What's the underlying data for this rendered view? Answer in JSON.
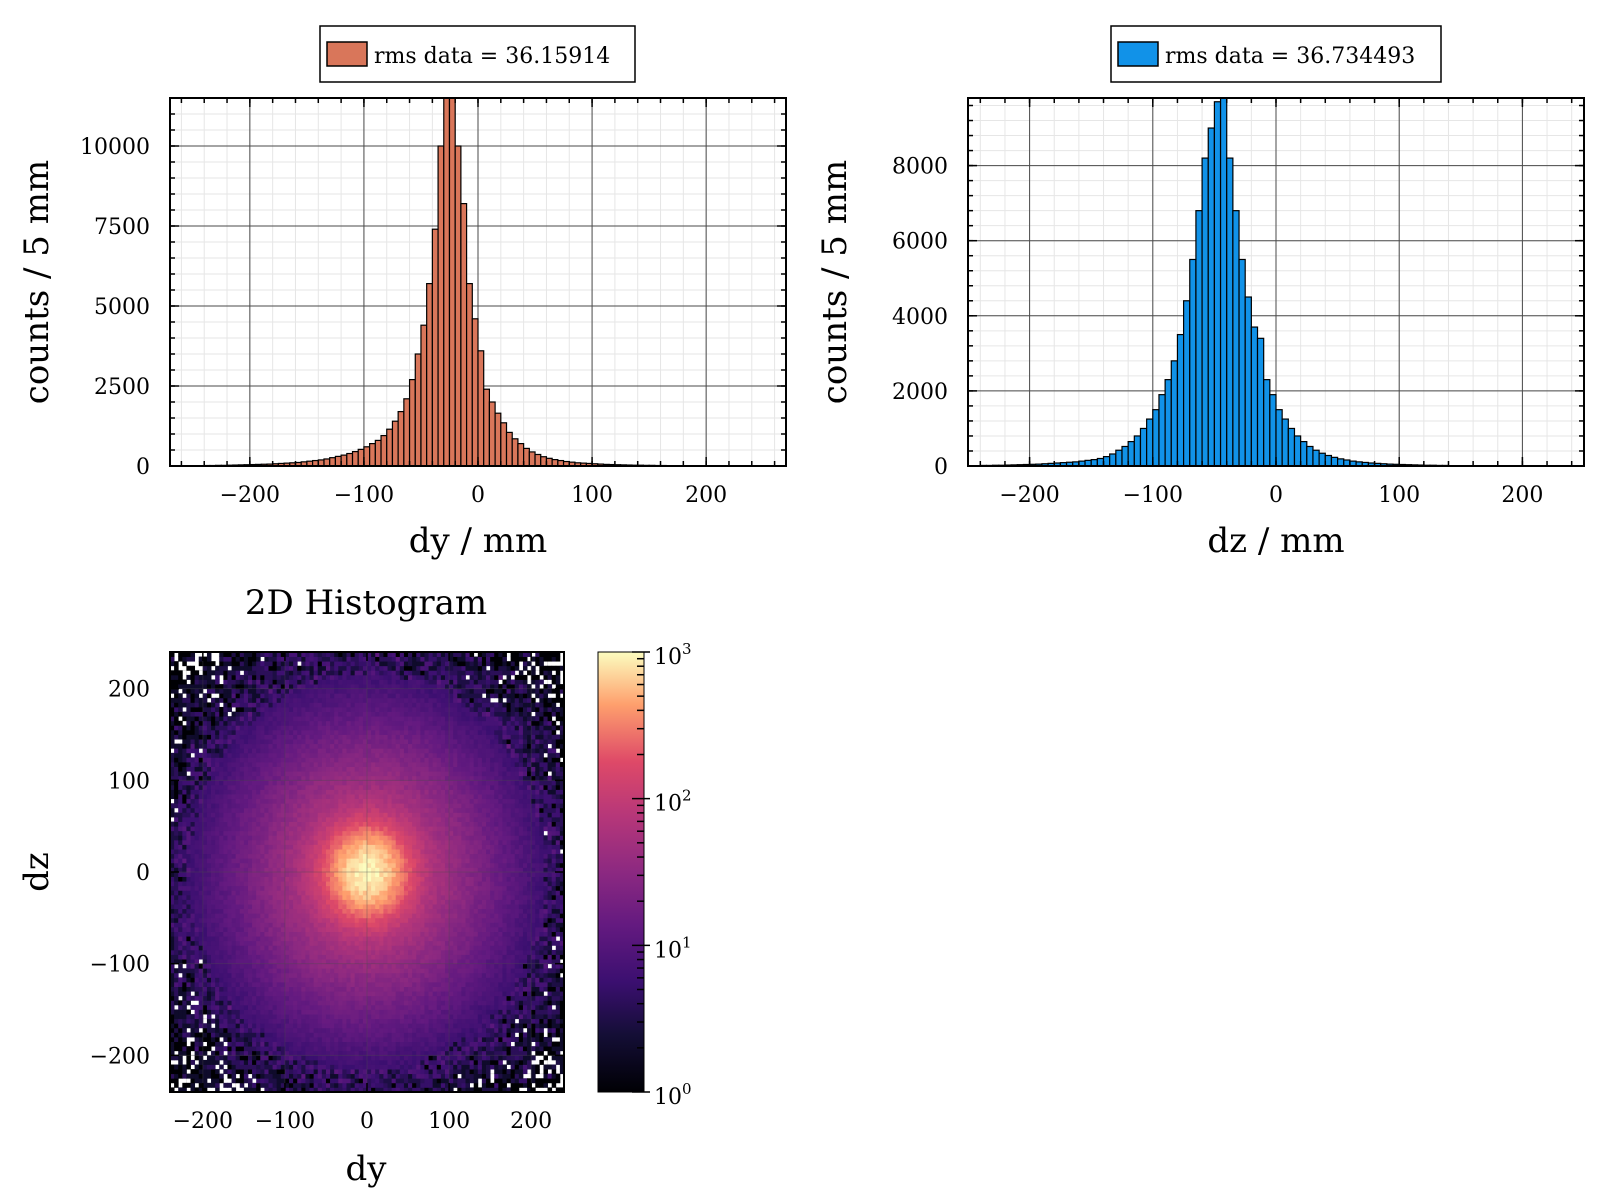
{
  "chart_data": [
    {
      "type": "bar",
      "id": "hist-dy",
      "xlabel": "dy / mm",
      "ylabel": "counts / 5 mm",
      "xlim": [
        -270,
        270
      ],
      "ylim": [
        0,
        11500
      ],
      "xticks": [
        -200,
        -100,
        0,
        100,
        200
      ],
      "xtick_labels": [
        "−200",
        "−100",
        "0",
        "100",
        "200"
      ],
      "yticks": [
        0,
        2500,
        5000,
        7500,
        10000
      ],
      "ytick_labels": [
        "0",
        "2500",
        "5000",
        "7500",
        "10000"
      ],
      "grid": true,
      "bin_width": 5,
      "bin_start": -250,
      "color": "#d9765a",
      "legend": {
        "label": "rms data = 36.15914",
        "placement": "top-center"
      },
      "values": [
        10,
        10,
        15,
        15,
        20,
        20,
        25,
        30,
        35,
        40,
        45,
        50,
        55,
        60,
        70,
        80,
        90,
        100,
        110,
        130,
        150,
        170,
        190,
        220,
        260,
        300,
        340,
        390,
        450,
        520,
        600,
        700,
        800,
        950,
        1150,
        1400,
        1700,
        2100,
        2700,
        3500,
        4400,
        5700,
        7400,
        10000,
        11500,
        11500,
        10000,
        8200,
        5700,
        4600,
        3600,
        2400,
        2000,
        1650,
        1350,
        1050,
        850,
        700,
        550,
        440,
        360,
        290,
        240,
        200,
        170,
        140,
        120,
        100,
        90,
        80,
        70,
        60,
        50,
        45,
        40,
        35,
        30,
        25,
        25,
        20,
        20,
        15,
        15,
        10,
        10,
        10,
        10,
        10,
        5,
        5,
        5,
        5,
        5,
        5,
        5,
        5,
        5,
        5,
        5,
        5
      ]
    },
    {
      "type": "bar",
      "id": "hist-dz",
      "xlabel": "dz / mm",
      "ylabel": "counts / 5 mm",
      "xlim": [
        -250,
        250
      ],
      "ylim": [
        0,
        9800
      ],
      "xticks": [
        -200,
        -100,
        0,
        100,
        200
      ],
      "xtick_labels": [
        "−200",
        "−100",
        "0",
        "100",
        "200"
      ],
      "yticks": [
        0,
        2000,
        4000,
        6000,
        8000
      ],
      "ytick_labels": [
        "0",
        "2000",
        "4000",
        "6000",
        "8000"
      ],
      "grid": true,
      "bin_width": 5,
      "bin_start": -250,
      "color": "#1192e8",
      "legend": {
        "label": "rms data = 36.734493",
        "placement": "top-center"
      },
      "values": [
        10,
        10,
        15,
        15,
        20,
        20,
        25,
        30,
        35,
        40,
        45,
        50,
        60,
        70,
        80,
        90,
        100,
        110,
        130,
        150,
        170,
        200,
        250,
        320,
        420,
        520,
        650,
        800,
        1000,
        1250,
        1500,
        1900,
        2300,
        2800,
        3500,
        4400,
        5500,
        6800,
        8200,
        9000,
        9700,
        9800,
        8200,
        6800,
        5500,
        4500,
        3700,
        3400,
        2300,
        1900,
        1500,
        1250,
        1000,
        800,
        650,
        520,
        420,
        340,
        280,
        230,
        190,
        160,
        130,
        110,
        95,
        80,
        70,
        60,
        50,
        45,
        40,
        35,
        30,
        25,
        20,
        20,
        15,
        15,
        10,
        10,
        10,
        10,
        10,
        5,
        5,
        5,
        5,
        5,
        5,
        5,
        5,
        5,
        5,
        5,
        5,
        5,
        5,
        5,
        5,
        5
      ]
    },
    {
      "type": "heatmap",
      "id": "hist-2d",
      "title": "2D Histogram",
      "xlabel": "dy",
      "ylabel": "dz",
      "xlim": [
        -240,
        240
      ],
      "ylim": [
        -240,
        240
      ],
      "xticks": [
        -200,
        -100,
        0,
        100,
        200
      ],
      "xtick_labels": [
        "−200",
        "−100",
        "0",
        "100",
        "200"
      ],
      "yticks": [
        -200,
        -100,
        0,
        100,
        200
      ],
      "ytick_labels": [
        "−200",
        "−100",
        "0",
        "100",
        "200"
      ],
      "grid": true,
      "bin_width": 5,
      "colorscale": "magma",
      "color_scale_type": "log",
      "colorbar": {
        "range": [
          1,
          1000
        ],
        "ticks": [
          {
            "base": "10",
            "exp": "0"
          },
          {
            "base": "10",
            "exp": "1"
          },
          {
            "base": "10",
            "exp": "2"
          },
          {
            "base": "10",
            "exp": "3"
          }
        ]
      },
      "peak_count": 1000,
      "center": [
        0,
        0
      ],
      "core_sigma": 26,
      "tail_scale": 60
    }
  ]
}
